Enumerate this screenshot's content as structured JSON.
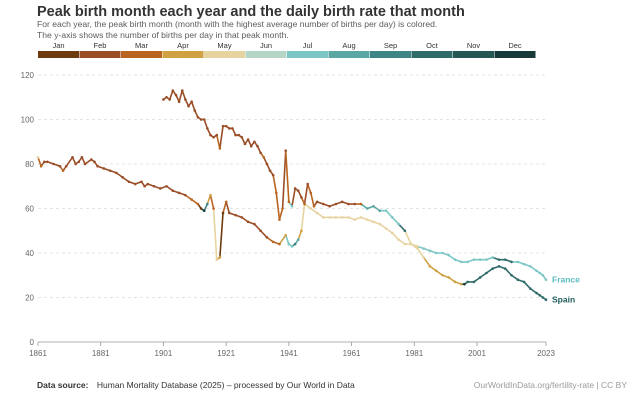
{
  "title": "Peak birth month each year and the daily birth rate that month",
  "subtitle_line1": "For each year, the peak birth month (month with the highest average number of births per day) is colored.",
  "subtitle_line2": "The y-axis shows the number of births per day in that peak month.",
  "footer": {
    "source_label": "Data source:",
    "source_text": "Human Mortality Database (2025) – processed by Our World in Data",
    "credit": "OurWorldInData.org/fertility-rate | CC BY"
  },
  "month_legend": [
    {
      "label": "Jan",
      "color": "#6e3b0e"
    },
    {
      "label": "Feb",
      "color": "#9a4e27"
    },
    {
      "label": "Mar",
      "color": "#b8651f"
    },
    {
      "label": "Apr",
      "color": "#d0a143"
    },
    {
      "label": "May",
      "color": "#e6d39f"
    },
    {
      "label": "Jun",
      "color": "#b5d6c6"
    },
    {
      "label": "Jul",
      "color": "#7cc7c5"
    },
    {
      "label": "Aug",
      "color": "#5aa7a3"
    },
    {
      "label": "Sep",
      "color": "#3f8585"
    },
    {
      "label": "Oct",
      "color": "#2f6b68"
    },
    {
      "label": "Nov",
      "color": "#255753"
    },
    {
      "label": "Dec",
      "color": "#173937"
    }
  ],
  "chart_data": {
    "type": "line",
    "x_ticks": [
      "1861",
      "1881",
      "1901",
      "1921",
      "1941",
      "1961",
      "1981",
      "2001",
      "2023"
    ],
    "y_ticks": [
      0,
      20,
      40,
      60,
      80,
      100,
      120
    ],
    "ylim": [
      0,
      120
    ],
    "xlim": [
      1861,
      2023
    ],
    "grid": true,
    "series": [
      {
        "name": "France",
        "label_color": "#5bbcc0",
        "points": [
          [
            1861,
            83,
            "May"
          ],
          [
            1862,
            79,
            "Mar"
          ],
          [
            1863,
            81,
            "Feb"
          ],
          [
            1864,
            81,
            "Feb"
          ],
          [
            1866,
            80,
            "Feb"
          ],
          [
            1868,
            79,
            "Feb"
          ],
          [
            1869,
            77,
            "Mar"
          ],
          [
            1870,
            79,
            "Feb"
          ],
          [
            1872,
            83,
            "Feb"
          ],
          [
            1873,
            80,
            "Feb"
          ],
          [
            1874,
            81,
            "Feb"
          ],
          [
            1875,
            83,
            "Feb"
          ],
          [
            1876,
            80,
            "Feb"
          ],
          [
            1878,
            82,
            "Feb"
          ],
          [
            1879,
            81,
            "Feb"
          ],
          [
            1880,
            79,
            "Feb"
          ],
          [
            1882,
            78,
            "Feb"
          ],
          [
            1884,
            77,
            "Feb"
          ],
          [
            1886,
            76,
            "Feb"
          ],
          [
            1888,
            74,
            "Feb"
          ],
          [
            1890,
            72,
            "Feb"
          ],
          [
            1892,
            71,
            "Feb"
          ],
          [
            1894,
            72,
            "Feb"
          ],
          [
            1895,
            70,
            "Feb"
          ],
          [
            1896,
            71,
            "Feb"
          ],
          [
            1898,
            70,
            "Feb"
          ],
          [
            1900,
            69,
            "Feb"
          ],
          [
            1902,
            70,
            "Feb"
          ],
          [
            1904,
            68,
            "Feb"
          ],
          [
            1906,
            67,
            "Feb"
          ],
          [
            1908,
            66,
            "Feb"
          ],
          [
            1910,
            64,
            "Mar"
          ],
          [
            1912,
            62,
            "Mar"
          ],
          [
            1913,
            60,
            "Jan"
          ],
          [
            1914,
            59,
            "Dec"
          ],
          [
            1915,
            62,
            "Sep"
          ],
          [
            1916,
            66,
            "Apr"
          ],
          [
            1917,
            60,
            "Mar"
          ],
          [
            1918,
            37,
            "May"
          ],
          [
            1919,
            38,
            "Apr"
          ],
          [
            1920,
            58,
            "Jan"
          ],
          [
            1921,
            63,
            "Mar"
          ],
          [
            1922,
            58,
            "Feb"
          ],
          [
            1924,
            57,
            "Feb"
          ],
          [
            1926,
            56,
            "Feb"
          ],
          [
            1928,
            54,
            "Feb"
          ],
          [
            1930,
            53,
            "Feb"
          ],
          [
            1932,
            50,
            "Feb"
          ],
          [
            1934,
            47,
            "Feb"
          ],
          [
            1936,
            45,
            "Mar"
          ],
          [
            1938,
            44,
            "Mar"
          ],
          [
            1940,
            48,
            "Apr"
          ],
          [
            1941,
            44,
            "Jul"
          ],
          [
            1942,
            43,
            "Jul"
          ],
          [
            1943,
            44,
            "Sep"
          ],
          [
            1944,
            46,
            "Aug"
          ],
          [
            1945,
            50,
            "Apr"
          ],
          [
            1946,
            62,
            "May"
          ],
          [
            1948,
            60,
            "May"
          ],
          [
            1950,
            58,
            "May"
          ],
          [
            1952,
            56,
            "May"
          ],
          [
            1954,
            56,
            "May"
          ],
          [
            1956,
            56,
            "May"
          ],
          [
            1958,
            56,
            "May"
          ],
          [
            1960,
            56,
            "May"
          ],
          [
            1962,
            55,
            "May"
          ],
          [
            1964,
            56,
            "May"
          ],
          [
            1966,
            55,
            "May"
          ],
          [
            1968,
            54,
            "May"
          ],
          [
            1970,
            53,
            "May"
          ],
          [
            1972,
            51,
            "May"
          ],
          [
            1974,
            49,
            "May"
          ],
          [
            1976,
            46,
            "May"
          ],
          [
            1978,
            44,
            "May"
          ],
          [
            1980,
            44,
            "May"
          ],
          [
            1982,
            43,
            "May"
          ],
          [
            1984,
            42,
            "Jul"
          ],
          [
            1986,
            41,
            "Jul"
          ],
          [
            1988,
            40,
            "Jul"
          ],
          [
            1990,
            40,
            "Jul"
          ],
          [
            1992,
            39,
            "Jul"
          ],
          [
            1994,
            37,
            "Jul"
          ],
          [
            1996,
            36,
            "Jul"
          ],
          [
            1998,
            36,
            "Jul"
          ],
          [
            2000,
            37,
            "Jul"
          ],
          [
            2002,
            37,
            "Jul"
          ],
          [
            2004,
            37,
            "Jul"
          ],
          [
            2006,
            38,
            "Jul"
          ],
          [
            2008,
            37,
            "Oct"
          ],
          [
            2010,
            37,
            "Oct"
          ],
          [
            2012,
            36,
            "Oct"
          ],
          [
            2014,
            36,
            "Jul"
          ],
          [
            2016,
            35,
            "Jul"
          ],
          [
            2018,
            34,
            "Jul"
          ],
          [
            2020,
            32,
            "Jul"
          ],
          [
            2021,
            31,
            "Jul"
          ],
          [
            2022,
            30,
            "Jul"
          ],
          [
            2023,
            28,
            "Jul"
          ]
        ]
      },
      {
        "name": "Spain",
        "label_color": "#1f5a59",
        "points": [
          [
            1901,
            109,
            "Feb"
          ],
          [
            1902,
            110,
            "Feb"
          ],
          [
            1903,
            109,
            "Feb"
          ],
          [
            1904,
            113,
            "Feb"
          ],
          [
            1905,
            111,
            "Feb"
          ],
          [
            1906,
            108,
            "Feb"
          ],
          [
            1907,
            113,
            "Feb"
          ],
          [
            1908,
            109,
            "Feb"
          ],
          [
            1909,
            106,
            "Feb"
          ],
          [
            1910,
            108,
            "Feb"
          ],
          [
            1911,
            104,
            "Feb"
          ],
          [
            1912,
            101,
            "Feb"
          ],
          [
            1913,
            100,
            "Feb"
          ],
          [
            1914,
            100,
            "Feb"
          ],
          [
            1915,
            96,
            "Feb"
          ],
          [
            1916,
            93,
            "Feb"
          ],
          [
            1917,
            92,
            "Feb"
          ],
          [
            1918,
            93,
            "Feb"
          ],
          [
            1919,
            87,
            "Mar"
          ],
          [
            1920,
            97,
            "Feb"
          ],
          [
            1921,
            97,
            "Feb"
          ],
          [
            1922,
            96,
            "Feb"
          ],
          [
            1923,
            96,
            "Feb"
          ],
          [
            1924,
            93,
            "Feb"
          ],
          [
            1925,
            93,
            "Feb"
          ],
          [
            1926,
            92,
            "Feb"
          ],
          [
            1927,
            89,
            "Feb"
          ],
          [
            1928,
            91,
            "Feb"
          ],
          [
            1929,
            88,
            "Feb"
          ],
          [
            1930,
            90,
            "Feb"
          ],
          [
            1931,
            88,
            "Feb"
          ],
          [
            1932,
            85,
            "Feb"
          ],
          [
            1933,
            83,
            "Mar"
          ],
          [
            1934,
            80,
            "Feb"
          ],
          [
            1935,
            77,
            "Feb"
          ],
          [
            1936,
            75,
            "Feb"
          ],
          [
            1937,
            67,
            "Mar"
          ],
          [
            1938,
            55,
            "Mar"
          ],
          [
            1939,
            60,
            "Mar"
          ],
          [
            1940,
            86,
            "Feb"
          ],
          [
            1941,
            63,
            "Mar"
          ],
          [
            1942,
            61,
            "Jul"
          ],
          [
            1943,
            69,
            "Feb"
          ],
          [
            1944,
            68,
            "Feb"
          ],
          [
            1945,
            65,
            "Feb"
          ],
          [
            1946,
            62,
            "Mar"
          ],
          [
            1947,
            71,
            "Feb"
          ],
          [
            1948,
            67,
            "Mar"
          ],
          [
            1949,
            61,
            "Mar"
          ],
          [
            1950,
            63,
            "Feb"
          ],
          [
            1952,
            62,
            "Feb"
          ],
          [
            1954,
            61,
            "Feb"
          ],
          [
            1956,
            62,
            "Feb"
          ],
          [
            1958,
            63,
            "Feb"
          ],
          [
            1960,
            62,
            "Feb"
          ],
          [
            1962,
            62,
            "Feb"
          ],
          [
            1964,
            62,
            "Mar"
          ],
          [
            1966,
            60,
            "Aug"
          ],
          [
            1968,
            61,
            "Aug"
          ],
          [
            1970,
            59,
            "Aug"
          ],
          [
            1972,
            59,
            "Jul"
          ],
          [
            1974,
            56,
            "Jul"
          ],
          [
            1976,
            53,
            "Jul"
          ],
          [
            1978,
            50,
            "Oct"
          ],
          [
            1980,
            44,
            "May"
          ],
          [
            1982,
            42,
            "May"
          ],
          [
            1984,
            38,
            "May"
          ],
          [
            1986,
            34,
            "Apr"
          ],
          [
            1988,
            32,
            "Apr"
          ],
          [
            1990,
            30,
            "Apr"
          ],
          [
            1992,
            29,
            "Apr"
          ],
          [
            1994,
            27,
            "Apr"
          ],
          [
            1996,
            26,
            "Apr"
          ],
          [
            1997,
            26,
            "Dec"
          ],
          [
            1998,
            27,
            "Oct"
          ],
          [
            2000,
            27,
            "Oct"
          ],
          [
            2002,
            29,
            "Oct"
          ],
          [
            2004,
            31,
            "Oct"
          ],
          [
            2006,
            33,
            "Oct"
          ],
          [
            2008,
            34,
            "Oct"
          ],
          [
            2010,
            33,
            "Oct"
          ],
          [
            2012,
            30,
            "Oct"
          ],
          [
            2014,
            28,
            "Oct"
          ],
          [
            2016,
            27,
            "Oct"
          ],
          [
            2018,
            24,
            "Oct"
          ],
          [
            2020,
            22,
            "Oct"
          ],
          [
            2021,
            21,
            "Oct"
          ],
          [
            2022,
            20,
            "Oct"
          ],
          [
            2023,
            19,
            "Oct"
          ]
        ]
      }
    ]
  }
}
